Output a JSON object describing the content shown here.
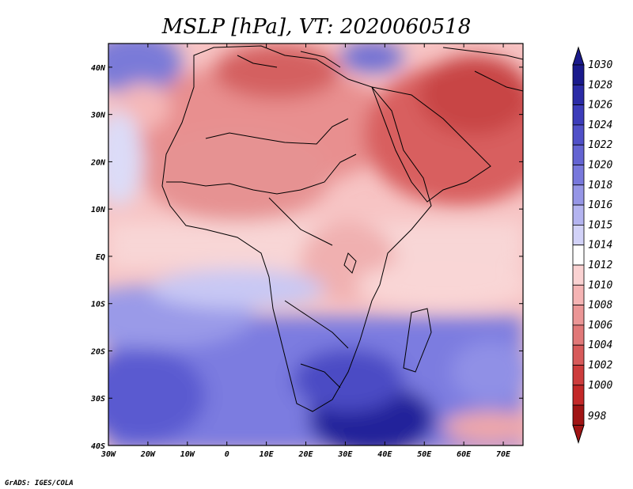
{
  "map": {
    "title": "MSLP [hPa], VT: 2020060518",
    "credit": "GrADS: IGES/COLA",
    "lon_labels": [
      "30W",
      "20W",
      "10W",
      "0",
      "10E",
      "20E",
      "30E",
      "40E",
      "50E",
      "60E",
      "70E"
    ],
    "lat_labels": [
      "40N",
      "30N",
      "20N",
      "10N",
      "EQ",
      "10S",
      "20S",
      "30S",
      "40S"
    ],
    "lon_range": [
      -30,
      75
    ],
    "lat_range": [
      -40,
      45
    ]
  },
  "colorbar": {
    "levels": [
      "1030",
      "1028",
      "1026",
      "1024",
      "1022",
      "1020",
      "1018",
      "1016",
      "1015",
      "1014",
      "1012",
      "1010",
      "1008",
      "1006",
      "1004",
      "1002",
      "1000",
      "998"
    ],
    "colors": [
      "#1a1a8c",
      "#2b2ba6",
      "#3c3cba",
      "#5050c8",
      "#6464d2",
      "#7878dc",
      "#9696e6",
      "#b4b4f0",
      "#d2d2f8",
      "#ffffff",
      "#fad2d2",
      "#f5b4b4",
      "#eb9696",
      "#e17878",
      "#d75a5a",
      "#cd3c3c",
      "#c32828",
      "#a01414"
    ]
  }
}
